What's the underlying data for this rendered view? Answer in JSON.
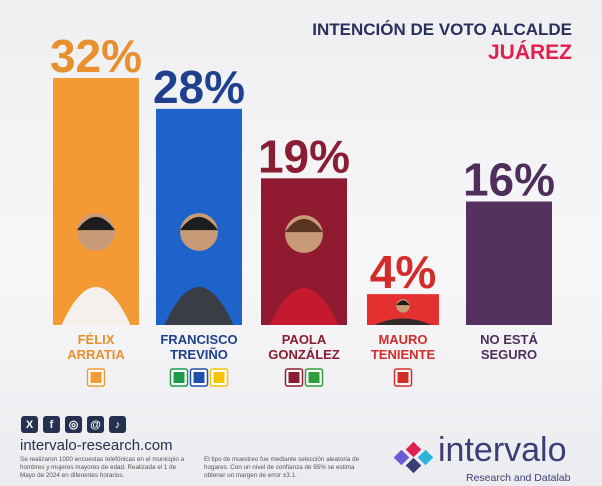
{
  "title_line1": "INTENCIÓN DE VOTO ALCALDE",
  "title_line2": "JUÁREZ",
  "colors": {
    "title": "#2a2f5c",
    "accent": "#e2204f",
    "text": "#25314f"
  },
  "chart_data": {
    "type": "bar",
    "title": "INTENCIÓN DE VOTO ALCALDE JUÁREZ",
    "unit": "%",
    "ylim": [
      0,
      32
    ],
    "categories": [
      "FÉLIX ARRATIA",
      "FRANCISCO TREVIÑO",
      "PAOLA GONZÁLEZ",
      "MAURO TENIENTE",
      "NO ESTÁ SEGURO"
    ],
    "values": [
      32,
      28,
      19,
      4,
      16
    ],
    "value_labels": [
      "32%",
      "28%",
      "19%",
      "4%",
      "16%"
    ],
    "bars": [
      {
        "name_line1": "FÉLIX",
        "name_line2": "ARRATIA",
        "value": 32,
        "label": "32%",
        "bar_color": "#f39a34",
        "value_color": "#e8902d",
        "name_color": "#e8902d",
        "parties": [
          "MC"
        ],
        "photo": true
      },
      {
        "name_line1": "FRANCISCO",
        "name_line2": "TREVIÑO",
        "value": 28,
        "label": "28%",
        "bar_color": "#1d63c9",
        "value_color": "#1f3f8f",
        "name_color": "#1f3f8f",
        "parties": [
          "PRI",
          "PAN",
          "PRD"
        ],
        "photo": true
      },
      {
        "name_line1": "PAOLA",
        "name_line2": "GONZÁLEZ",
        "value": 19,
        "label": "19%",
        "bar_color": "#8f1a2f",
        "value_color": "#8a1d33",
        "name_color": "#8a1d33",
        "parties": [
          "morena",
          "VERDE"
        ],
        "photo": true
      },
      {
        "name_line1": "MAURO",
        "name_line2": "TENIENTE",
        "value": 4,
        "label": "4%",
        "bar_color": "#e53030",
        "value_color": "#d42b2b",
        "name_color": "#d42b2b",
        "parties": [
          "PT"
        ],
        "photo": true
      },
      {
        "name_line1": "NO ESTÁ",
        "name_line2": "SEGURO",
        "value": 16,
        "label": "16%",
        "bar_color": "#55315f",
        "value_color": "#4e2e5b",
        "name_color": "#4e2e5b",
        "parties": [],
        "photo": false
      }
    ]
  },
  "social_icons": [
    "x-icon",
    "facebook-icon",
    "instagram-icon",
    "threads-icon",
    "tiktok-icon"
  ],
  "social_glyphs": [
    "X",
    "f",
    "◎",
    "@",
    "♪"
  ],
  "website": "intervalo-research.com",
  "footnote_left": "Se realizaron 1000 encuestas telefónicas en el municipio a hombres y mujeres mayores de edad. Realizada el 1 de Mayo de 2024 en diferentes horarios.",
  "footnote_right": "El tipo de muestreo fue mediante selección aleatoria de hogares. Con un nivel de confianza de 95% se estima obtener un margen de error ±3.1.",
  "brand": {
    "name": "intervalo",
    "subtitle": "Research and Datalab"
  }
}
